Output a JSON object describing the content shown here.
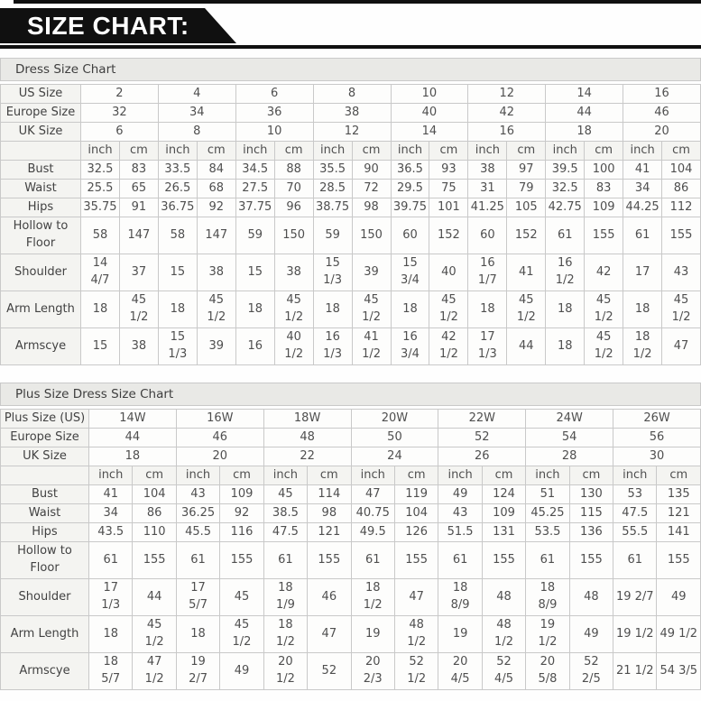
{
  "banner": {
    "title": "SIZE CHART:"
  },
  "colors": {
    "banner_bg": "#101010",
    "header_bg": "#e9e9e6",
    "label_cell_bg": "#f4f4f1",
    "value_cell_bg": "#fdfdfc",
    "border": "#c9c9c9",
    "text": "#4f4f4f"
  },
  "table1": {
    "title": "Dress Size Chart",
    "unit_labels": [
      "inch",
      "cm"
    ],
    "size_rows": [
      {
        "label": "US Size",
        "values": [
          "2",
          "4",
          "6",
          "8",
          "10",
          "12",
          "14",
          "16"
        ]
      },
      {
        "label": "Europe Size",
        "values": [
          "32",
          "34",
          "36",
          "38",
          "40",
          "42",
          "44",
          "46"
        ]
      },
      {
        "label": "UK Size",
        "values": [
          "6",
          "8",
          "10",
          "12",
          "14",
          "16",
          "18",
          "20"
        ]
      }
    ],
    "measure_rows": [
      {
        "label": "Bust",
        "tall": false,
        "values": [
          "32.5",
          "83",
          "33.5",
          "84",
          "34.5",
          "88",
          "35.5",
          "90",
          "36.5",
          "93",
          "38",
          "97",
          "39.5",
          "100",
          "41",
          "104"
        ]
      },
      {
        "label": "Waist",
        "tall": false,
        "values": [
          "25.5",
          "65",
          "26.5",
          "68",
          "27.5",
          "70",
          "28.5",
          "72",
          "29.5",
          "75",
          "31",
          "79",
          "32.5",
          "83",
          "34",
          "86"
        ]
      },
      {
        "label": "Hips",
        "tall": false,
        "values": [
          "35.75",
          "91",
          "36.75",
          "92",
          "37.75",
          "96",
          "38.75",
          "98",
          "39.75",
          "101",
          "41.25",
          "105",
          "42.75",
          "109",
          "44.25",
          "112"
        ]
      },
      {
        "label": "Hollow to\nFloor",
        "tall": true,
        "values": [
          "58",
          "147",
          "58",
          "147",
          "59",
          "150",
          "59",
          "150",
          "60",
          "152",
          "60",
          "152",
          "61",
          "155",
          "61",
          "155"
        ]
      },
      {
        "label": "Shoulder",
        "tall": true,
        "values": [
          "14\n4/7",
          "37",
          "15",
          "38",
          "15",
          "38",
          "15\n1/3",
          "39",
          "15\n3/4",
          "40",
          "16\n1/7",
          "41",
          "16\n1/2",
          "42",
          "17",
          "43"
        ]
      },
      {
        "label": "Arm Length",
        "tall": true,
        "values": [
          "18",
          "45\n1/2",
          "18",
          "45\n1/2",
          "18",
          "45\n1/2",
          "18",
          "45\n1/2",
          "18",
          "45\n1/2",
          "18",
          "45\n1/2",
          "18",
          "45\n1/2",
          "18",
          "45\n1/2"
        ]
      },
      {
        "label": "Armscye",
        "tall": true,
        "values": [
          "15",
          "38",
          "15\n1/3",
          "39",
          "16",
          "40\n1/2",
          "16\n1/3",
          "41\n1/2",
          "16\n3/4",
          "42\n1/2",
          "17\n1/3",
          "44",
          "18",
          "45\n1/2",
          "18\n1/2",
          "47"
        ]
      }
    ]
  },
  "table2": {
    "title": "Plus Size Dress Size Chart",
    "unit_labels": [
      "inch",
      "cm"
    ],
    "size_rows": [
      {
        "label": "Plus Size (US)",
        "values": [
          "14W",
          "16W",
          "18W",
          "20W",
          "22W",
          "24W",
          "26W"
        ]
      },
      {
        "label": "Europe Size",
        "values": [
          "44",
          "46",
          "48",
          "50",
          "52",
          "54",
          "56"
        ]
      },
      {
        "label": "UK Size",
        "values": [
          "18",
          "20",
          "22",
          "24",
          "26",
          "28",
          "30"
        ]
      }
    ],
    "measure_rows": [
      {
        "label": "Bust",
        "tall": false,
        "values": [
          "41",
          "104",
          "43",
          "109",
          "45",
          "114",
          "47",
          "119",
          "49",
          "124",
          "51",
          "130",
          "53",
          "135"
        ]
      },
      {
        "label": "Waist",
        "tall": false,
        "values": [
          "34",
          "86",
          "36.25",
          "92",
          "38.5",
          "98",
          "40.75",
          "104",
          "43",
          "109",
          "45.25",
          "115",
          "47.5",
          "121"
        ]
      },
      {
        "label": "Hips",
        "tall": false,
        "values": [
          "43.5",
          "110",
          "45.5",
          "116",
          "47.5",
          "121",
          "49.5",
          "126",
          "51.5",
          "131",
          "53.5",
          "136",
          "55.5",
          "141"
        ]
      },
      {
        "label": "Hollow to\nFloor",
        "tall": true,
        "values": [
          "61",
          "155",
          "61",
          "155",
          "61",
          "155",
          "61",
          "155",
          "61",
          "155",
          "61",
          "155",
          "61",
          "155"
        ]
      },
      {
        "label": "Shoulder",
        "tall": true,
        "values": [
          "17\n1/3",
          "44",
          "17\n5/7",
          "45",
          "18\n1/9",
          "46",
          "18\n1/2",
          "47",
          "18\n8/9",
          "48",
          "18\n8/9",
          "48",
          "19 2/7",
          "49"
        ]
      },
      {
        "label": "Arm Length",
        "tall": true,
        "values": [
          "18",
          "45\n1/2",
          "18",
          "45\n1/2",
          "18\n1/2",
          "47",
          "19",
          "48\n1/2",
          "19",
          "48\n1/2",
          "19\n1/2",
          "49",
          "19 1/2",
          "49 1/2"
        ]
      },
      {
        "label": "Armscye",
        "tall": true,
        "values": [
          "18\n5/7",
          "47\n1/2",
          "19\n2/7",
          "49",
          "20\n1/2",
          "52",
          "20\n2/3",
          "52\n1/2",
          "20\n4/5",
          "52\n4/5",
          "20\n5/8",
          "52\n2/5",
          "21 1/2",
          "54 3/5"
        ]
      }
    ]
  }
}
